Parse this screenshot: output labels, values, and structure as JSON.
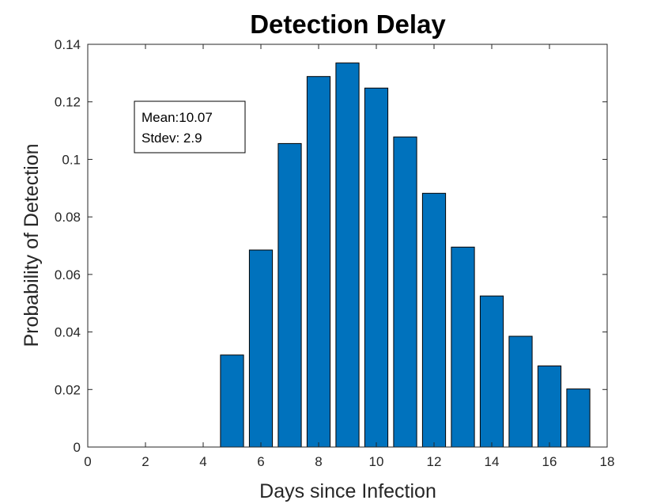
{
  "chart_data": {
    "type": "bar",
    "title": "Detection Delay",
    "xlabel": "Days since Infection",
    "ylabel": "Probability of Detection",
    "x": [
      5,
      6,
      7,
      8,
      9,
      10,
      11,
      12,
      13,
      14,
      15,
      16,
      17
    ],
    "values": [
      0.032,
      0.0685,
      0.1055,
      0.1288,
      0.1335,
      0.1248,
      0.1078,
      0.0882,
      0.0695,
      0.0525,
      0.0385,
      0.0282,
      0.0202
    ],
    "xlim": [
      0,
      18
    ],
    "ylim": [
      0,
      0.14
    ],
    "xticks": [
      "0",
      "2",
      "4",
      "6",
      "8",
      "10",
      "12",
      "14",
      "16",
      "18"
    ],
    "yticks": [
      "0",
      "0.02",
      "0.04",
      "0.06",
      "0.08",
      "0.1",
      "0.12",
      "0.14"
    ],
    "annotation": [
      "Mean:10.07",
      "Stdev: 2.9"
    ],
    "grid": false,
    "bar_color": "#0072BD"
  }
}
